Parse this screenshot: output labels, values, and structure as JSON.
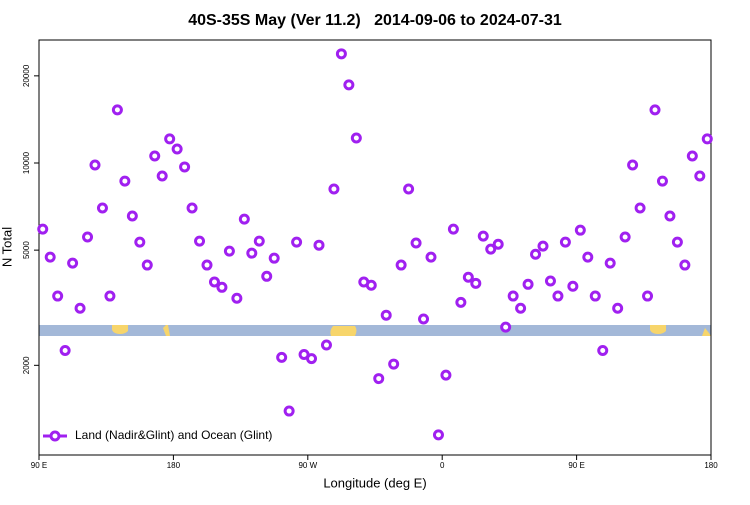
{
  "chart_data": {
    "type": "scatter",
    "title": "40S-35S May (Ver 11.2)   2014-09-06 to 2024-07-31",
    "x_label": "Longitude (deg E)",
    "y_label": "N Total",
    "xlim": [
      90,
      540
    ],
    "xticks": [
      {
        "value": 90,
        "label": "90 E"
      },
      180,
      {
        "value": 270,
        "label": "90 W"
      },
      {
        "value": 360,
        "label": "0"
      },
      {
        "value": 450,
        "label": "90 E"
      },
      {
        "value": 540,
        "label": "180"
      }
    ],
    "ylim": [
      980,
      26600
    ],
    "yscale": "log",
    "yticks": [
      2000,
      5000,
      10000,
      20000
    ],
    "legend": "bottom-left",
    "series": [
      {
        "name": "Land (Nadir&Glint) and Ocean (Glint)",
        "color": "#a020f0",
        "x": [
          92.5,
          97.5,
          102.5,
          107.5,
          112.5,
          117.5,
          122.5,
          127.5,
          132.5,
          137.5,
          142.5,
          147.5,
          152.5,
          157.5,
          162.5,
          167.5,
          172.5,
          177.5,
          182.5,
          187.5,
          192.5,
          197.5,
          202.5,
          207.5,
          212.5,
          217.5,
          222.5,
          227.5,
          232.5,
          237.5,
          242.5,
          247.5,
          252.5,
          257.5,
          262.5,
          267.5,
          272.5,
          277.5,
          282.5,
          287.5,
          292.5,
          297.5,
          302.5,
          307.5,
          312.5,
          317.5,
          322.5,
          327.5,
          332.5,
          337.5,
          342.5,
          347.5,
          352.5,
          357.5,
          362.5,
          367.5,
          372.5,
          377.5,
          382.5,
          387.5,
          392.5,
          397.5,
          402.5,
          407.5,
          412.5,
          417.5,
          422.5,
          427.5,
          432.5,
          437.5,
          442.5,
          447.5,
          452.5,
          457.5,
          462.5,
          467.5,
          472.5,
          477.5,
          482.5,
          487.5,
          492.5,
          497.5,
          502.5,
          507.5,
          512.5,
          517.5,
          522.5,
          527.5,
          532.5,
          537.5
        ],
        "values": [
          5910,
          4730,
          3470,
          2250,
          4510,
          3150,
          5550,
          9840,
          6990,
          3470,
          15260,
          8660,
          6560,
          5330,
          4440,
          10570,
          9020,
          12110,
          11180,
          9690,
          6990,
          5370,
          4440,
          3880,
          3720,
          4960,
          3410,
          6400,
          4880,
          5370,
          4060,
          4690,
          2130,
          1390,
          5330,
          2180,
          2110,
          5200,
          2350,
          8130,
          23830,
          18610,
          12200,
          3880,
          3780,
          1800,
          2980,
          2020,
          4440,
          8130,
          5290,
          2890,
          4730,
          1150,
          1850,
          5910,
          3300,
          4030,
          3840,
          5590,
          5040,
          5240,
          2710,
          3470,
          3150,
          3810,
          4840,
          5160,
          3910,
          3470,
          5330,
          3750,
          5860,
          4730,
          3470,
          2250,
          4510,
          3150,
          5550,
          9840,
          6990,
          3470,
          15260,
          8660,
          6560,
          5330,
          4440,
          10570,
          9020,
          12110
        ]
      }
    ]
  }
}
